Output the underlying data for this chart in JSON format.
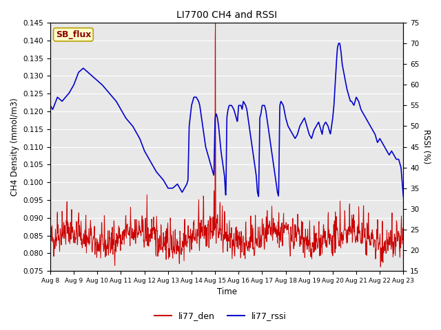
{
  "title": "LI7700 CH4 and RSSI",
  "xlabel": "Time",
  "ylabel_left": "CH4 Density (mmol/m3)",
  "ylabel_right": "RSSI (%)",
  "annotation": "SB_flux",
  "annotation_color": "#8B0000",
  "annotation_bg": "#FFFFCC",
  "annotation_border": "#B8A000",
  "ylim_left": [
    0.075,
    0.145
  ],
  "ylim_right": [
    15,
    75
  ],
  "yticks_left": [
    0.075,
    0.08,
    0.085,
    0.09,
    0.095,
    0.1,
    0.105,
    0.11,
    0.115,
    0.12,
    0.125,
    0.13,
    0.135,
    0.14,
    0.145
  ],
  "yticks_right": [
    15,
    20,
    25,
    30,
    35,
    40,
    45,
    50,
    55,
    60,
    65,
    70,
    75
  ],
  "xtick_labels": [
    "Aug 8",
    "Aug 9",
    "Aug 10",
    "Aug 11",
    "Aug 12",
    "Aug 13",
    "Aug 14",
    "Aug 15",
    "Aug 16",
    "Aug 17",
    "Aug 18",
    "Aug 19",
    "Aug 20",
    "Aug 21",
    "Aug 22",
    "Aug 23"
  ],
  "color_den": "#CC0000",
  "color_rssi": "#0000CC",
  "legend_den": "li77_den",
  "legend_rssi": "li77_rssi",
  "plot_bg_color": "#E8E8E8",
  "grid_color": "#FFFFFF"
}
